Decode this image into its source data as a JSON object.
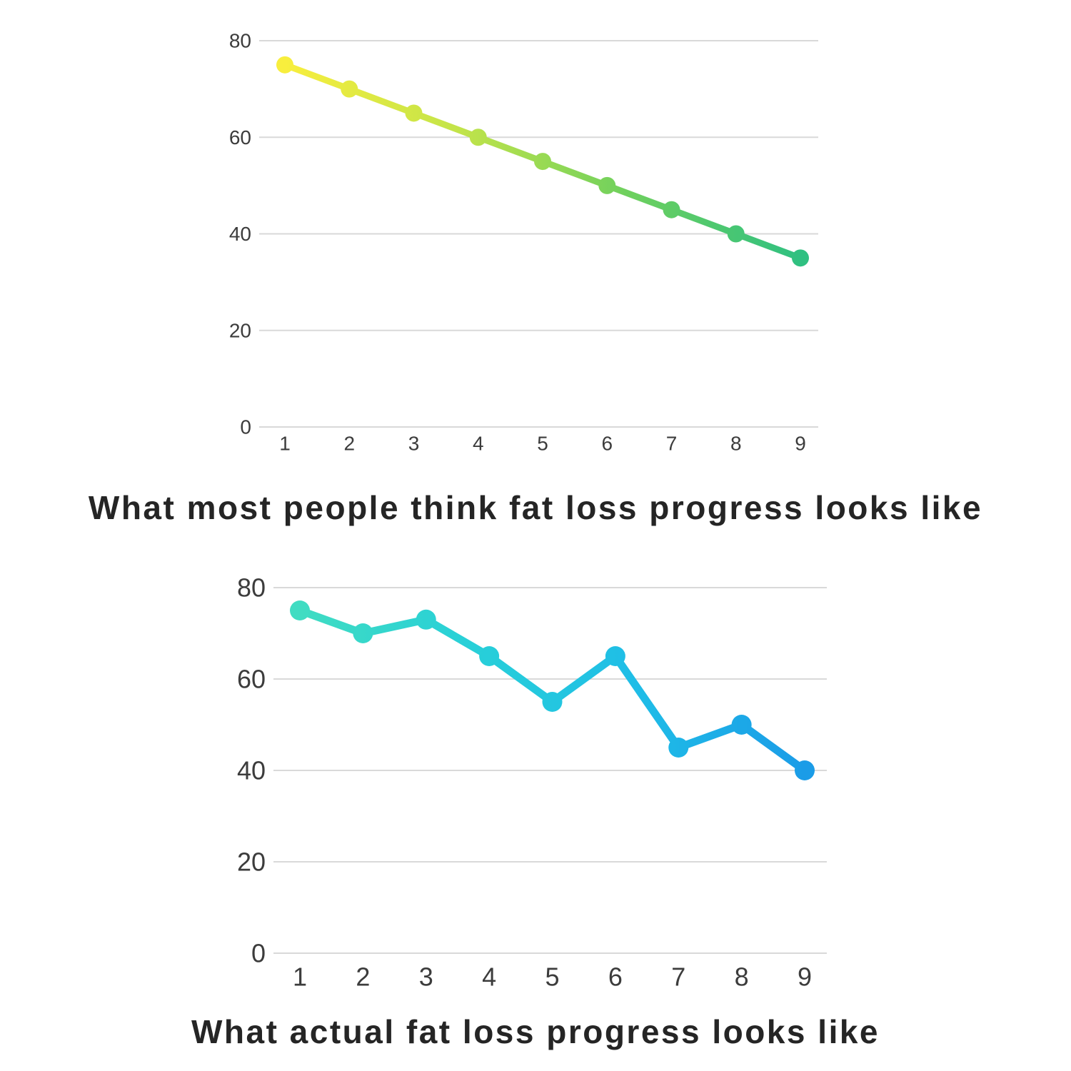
{
  "page": {
    "background": "#ffffff",
    "caption_color": "#252525",
    "grid_color": "#d9d9d9",
    "tick_color": "#3c3c3c"
  },
  "chart_data": [
    {
      "type": "line",
      "title": "What most people think fat loss progress looks like",
      "x": [
        1,
        2,
        3,
        4,
        5,
        6,
        7,
        8,
        9
      ],
      "values": [
        75,
        70,
        65,
        60,
        55,
        50,
        45,
        40,
        35
      ],
      "x_tick_labels": [
        "1",
        "2",
        "3",
        "4",
        "5",
        "6",
        "7",
        "8",
        "9"
      ],
      "y_ticks": [
        0,
        20,
        40,
        60,
        80
      ],
      "ylim": [
        0,
        80
      ],
      "grid": true,
      "legend": "none",
      "line_gradient": [
        "#f8ee3d",
        "#c3e449",
        "#6ed05e",
        "#2fc081"
      ]
    },
    {
      "type": "line",
      "title": "What actual fat loss progress looks like",
      "x": [
        1,
        2,
        3,
        4,
        5,
        6,
        7,
        8,
        9
      ],
      "values": [
        75,
        70,
        73,
        65,
        55,
        65,
        45,
        50,
        40
      ],
      "x_tick_labels": [
        "1",
        "2",
        "3",
        "4",
        "5",
        "6",
        "7",
        "8",
        "9"
      ],
      "y_ticks": [
        0,
        20,
        40,
        60,
        80
      ],
      "ylim": [
        0,
        80
      ],
      "grid": true,
      "legend": "none",
      "line_gradient": [
        "#40dcc2",
        "#28d0d8",
        "#1fbde7",
        "#1b9ce7"
      ]
    }
  ]
}
